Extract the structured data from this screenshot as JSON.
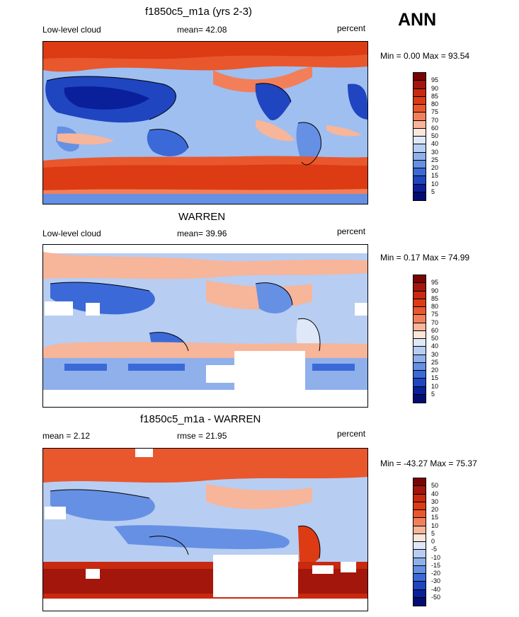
{
  "season": "ANN",
  "panels": [
    {
      "title": "f1850c5_m1a (yrs 2-3)",
      "left_label": "Low-level cloud",
      "center_label": "mean=  42.08",
      "right_label": "percent",
      "minmax": "Min =   0.00 Max =  93.54",
      "levels": [
        "95",
        "90",
        "85",
        "80",
        "75",
        "70",
        "60",
        "50",
        "40",
        "30",
        "25",
        "20",
        "15",
        "10",
        "5"
      ]
    },
    {
      "title": "WARREN",
      "left_label": "Low-level cloud",
      "center_label": "mean=  39.96",
      "right_label": "percent",
      "minmax": "Min =   0.17 Max =  74.99",
      "levels": [
        "95",
        "90",
        "85",
        "80",
        "75",
        "70",
        "60",
        "50",
        "40",
        "30",
        "25",
        "20",
        "15",
        "10",
        "5"
      ]
    },
    {
      "title": "f1850c5_m1a - WARREN",
      "left_label": "mean =   2.12",
      "center_label": "rmse =  21.95",
      "right_label": "percent",
      "minmax": "Min = -43.27 Max =  75.37",
      "levels": [
        "50",
        "40",
        "30",
        "20",
        "15",
        "10",
        "5",
        "0",
        "-5",
        "-10",
        "-15",
        "-20",
        "-30",
        "-40",
        "-50"
      ]
    }
  ],
  "colors": {
    "scale": [
      "#7a0403",
      "#a3160c",
      "#c8290f",
      "#dc3b14",
      "#e9572d",
      "#f27f5a",
      "#f7b59a",
      "#fbe6da",
      "#dfe8f8",
      "#b7cdf2",
      "#8fb0eb",
      "#6690e3",
      "#3b6ad8",
      "#1f45c0",
      "#0a1f9a",
      "#020c73"
    ],
    "land": "#000000"
  }
}
